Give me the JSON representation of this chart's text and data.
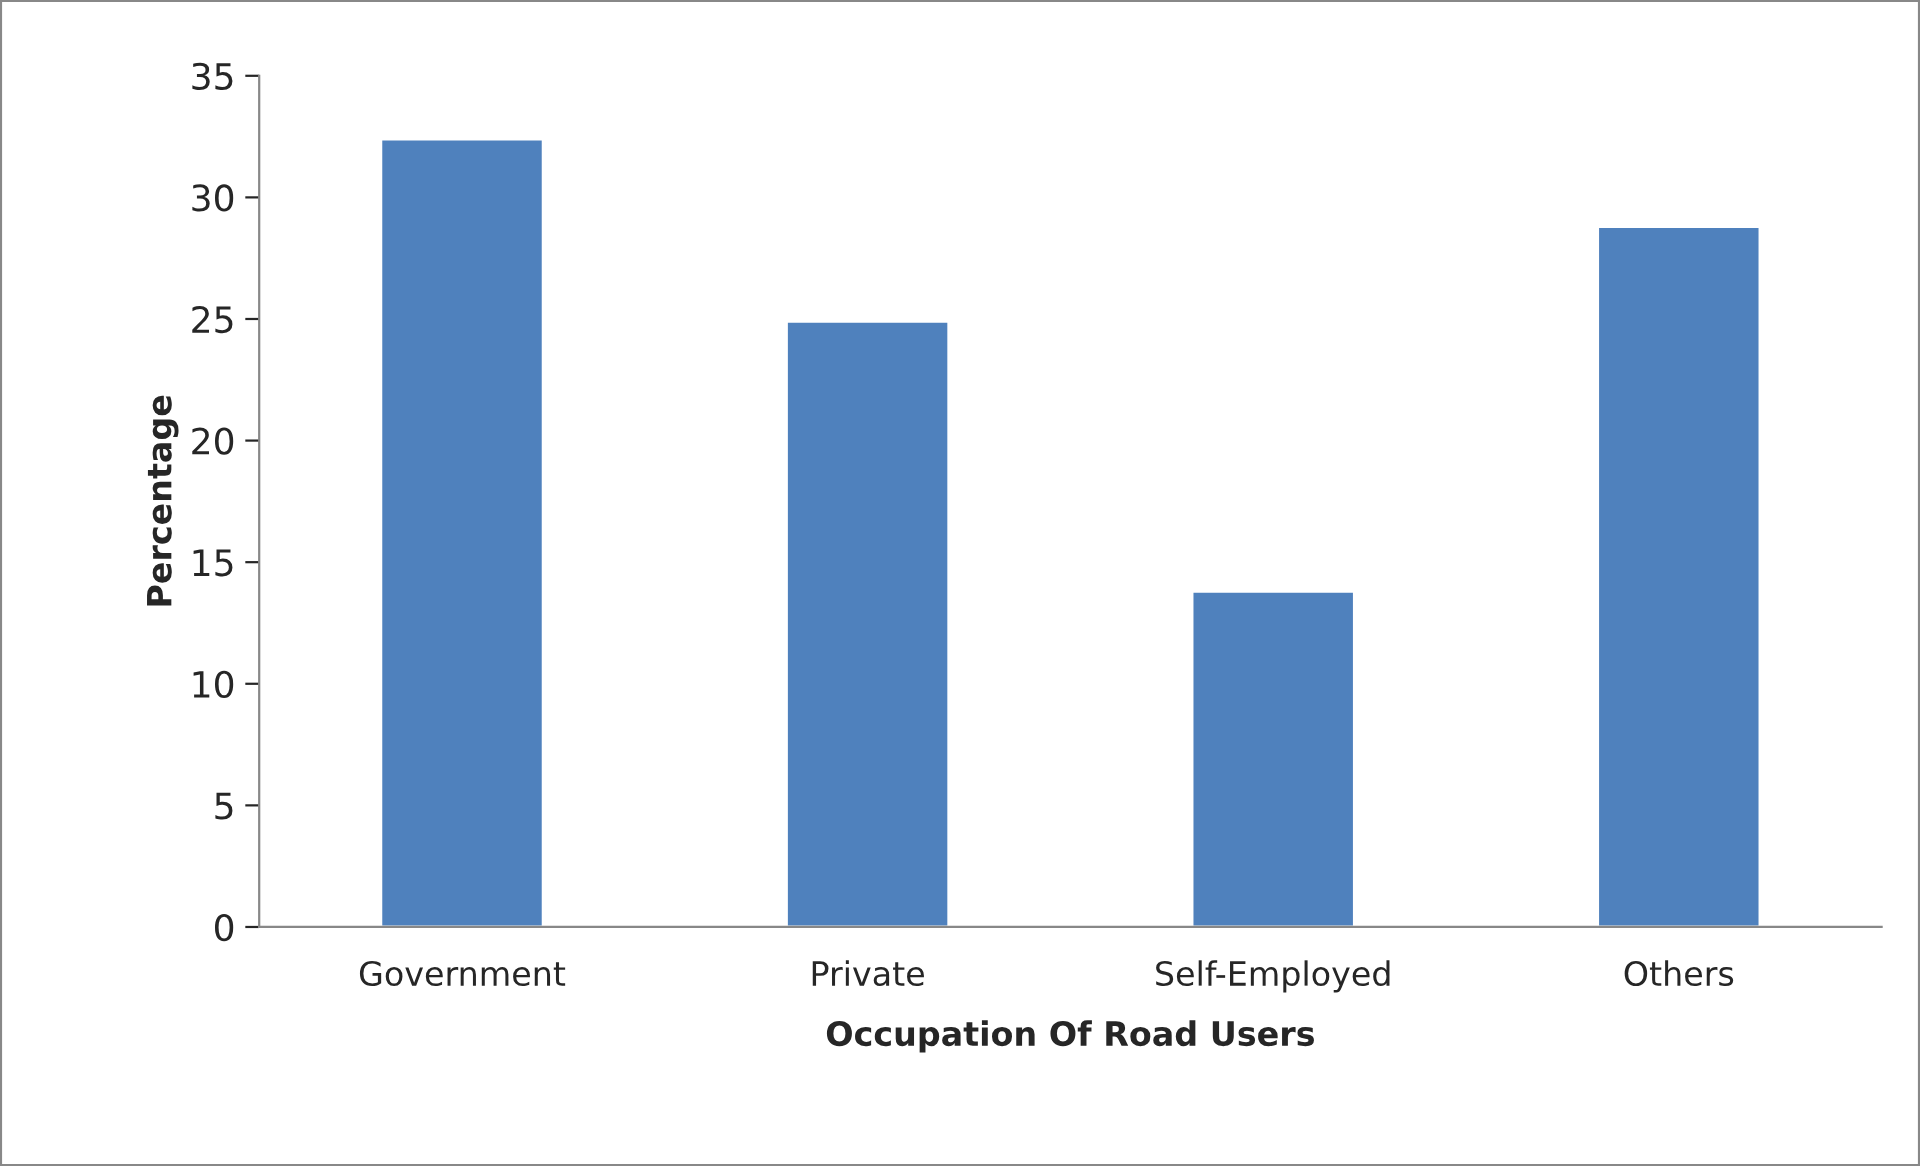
{
  "chart_data": {
    "type": "bar",
    "xlabel": "Occupation Of Road Users",
    "ylabel": "Percentage",
    "categories": [
      "Government",
      "Private",
      "Self-Employed",
      "Others"
    ],
    "values": [
      32.4,
      24.9,
      13.8,
      28.8
    ],
    "color": "#4f81bd",
    "ylim": [
      0,
      35
    ],
    "yticks": [
      0,
      5,
      10,
      15,
      20,
      25,
      30,
      35
    ],
    "grid": false,
    "legend": false
  }
}
